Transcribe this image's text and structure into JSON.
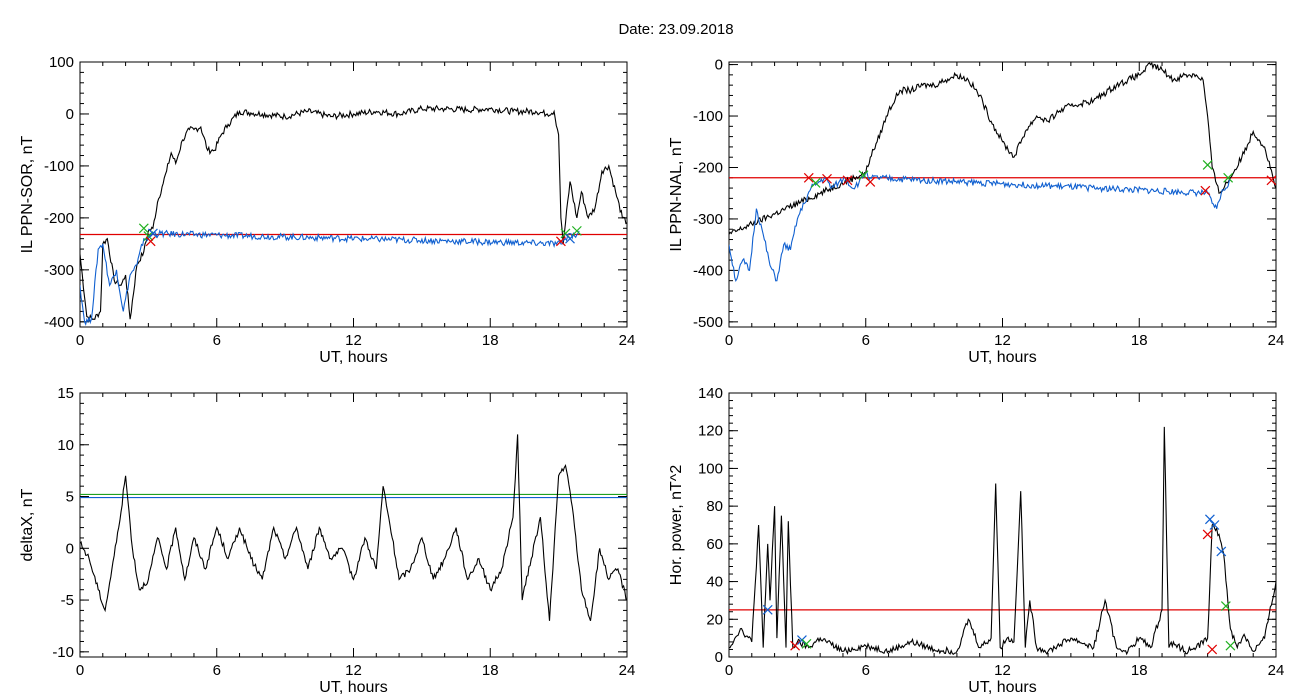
{
  "title": "Date:  23.09.2018",
  "chart_data": [
    {
      "type": "line",
      "xlabel": "UT, hours",
      "ylabel": "IL PPN-SOR, nT",
      "xlim": [
        0,
        24
      ],
      "ylim": [
        -410,
        100
      ],
      "xticks": [
        0,
        6,
        12,
        18,
        24
      ],
      "yticks": [
        100,
        0,
        -100,
        -200,
        -300,
        -400
      ],
      "threshold": {
        "value": -232,
        "color": "#e00000"
      },
      "series": [
        {
          "color": "#000000",
          "x": [
            0,
            0.3,
            0.6,
            0.9,
            1.0,
            1.2,
            1.5,
            1.8,
            2.0,
            2.2,
            2.5,
            2.8,
            3.0,
            3.2,
            3.4,
            3.6,
            3.8,
            4.0,
            4.2,
            4.5,
            4.8,
            5.0,
            5.3,
            5.6,
            5.9,
            6.2,
            6.5,
            7.0,
            7.5,
            8,
            9,
            10,
            11,
            12,
            13,
            14,
            15,
            16,
            17,
            18,
            19,
            20,
            20.5,
            20.8,
            21.0,
            21.1,
            21.2,
            21.5,
            21.8,
            22.0,
            22.3,
            22.6,
            22.9,
            23.2,
            23.5,
            23.8,
            24
          ],
          "y": [
            -270,
            -390,
            -395,
            -380,
            -250,
            -240,
            -320,
            -330,
            -310,
            -395,
            -290,
            -265,
            -225,
            -220,
            -170,
            -140,
            -110,
            -75,
            -95,
            -50,
            -30,
            -30,
            -25,
            -70,
            -70,
            -40,
            -20,
            5,
            2,
            0,
            -5,
            5,
            -5,
            0,
            5,
            0,
            10,
            10,
            8,
            10,
            5,
            5,
            0,
            5,
            -40,
            -200,
            -250,
            -130,
            -200,
            -150,
            -200,
            -180,
            -110,
            -100,
            -150,
            -200,
            -210
          ]
        },
        {
          "color": "#1060d0",
          "x": [
            0,
            0.2,
            0.5,
            0.8,
            1.0,
            1.3,
            1.6,
            1.9,
            2.2,
            2.5,
            2.8,
            3.0,
            3.2,
            21.1,
            21.3,
            21.5,
            21.7,
            21.9
          ],
          "y": [
            -330,
            -400,
            -395,
            -260,
            -250,
            -330,
            -300,
            -380,
            -310,
            -290,
            -240,
            -240,
            -230,
            -250,
            -240,
            -230,
            -235,
            -225
          ]
        }
      ],
      "markers": [
        {
          "x": 2.8,
          "y": -220,
          "color": "#20b020"
        },
        {
          "x": 3.0,
          "y": -235,
          "color": "#20b020"
        },
        {
          "x": 3.1,
          "y": -245,
          "color": "#e00000"
        },
        {
          "x": 3.2,
          "y": -230,
          "color": "#1060d0"
        },
        {
          "x": 21.1,
          "y": -245,
          "color": "#e00000"
        },
        {
          "x": 21.3,
          "y": -230,
          "color": "#20b020"
        },
        {
          "x": 21.5,
          "y": -240,
          "color": "#1060d0"
        },
        {
          "x": 21.8,
          "y": -225,
          "color": "#20b020"
        }
      ]
    },
    {
      "type": "line",
      "xlabel": "UT, hours",
      "ylabel": "IL PPN-NAL, nT",
      "xlim": [
        0,
        24
      ],
      "ylim": [
        -510,
        5
      ],
      "xticks": [
        0,
        6,
        12,
        18,
        24
      ],
      "yticks": [
        0,
        -100,
        -200,
        -300,
        -400,
        -500
      ],
      "threshold": {
        "value": -220,
        "color": "#e00000"
      },
      "series": [
        {
          "color": "#000000",
          "x": [
            0,
            6.0,
            6.2,
            6.5,
            7.0,
            7.5,
            8.0,
            8.5,
            9.0,
            9.5,
            10.0,
            10.5,
            11.0,
            11.5,
            12.0,
            12.5,
            13.0,
            13.5,
            14.0,
            14.5,
            15,
            16,
            17,
            18,
            18.5,
            19.0,
            19.5,
            20.0,
            20.5,
            20.8,
            21.0,
            21.2,
            21.5,
            22.0,
            22.5,
            23.0,
            23.5,
            24
          ],
          "y": [
            -330,
            -210,
            -180,
            -150,
            -90,
            -50,
            -50,
            -40,
            -40,
            -30,
            -20,
            -30,
            -60,
            -110,
            -150,
            -180,
            -130,
            -100,
            -110,
            -90,
            -80,
            -70,
            -40,
            -20,
            0,
            -10,
            -30,
            -20,
            -20,
            -30,
            -100,
            -200,
            -250,
            -220,
            -180,
            -130,
            -160,
            -240
          ]
        },
        {
          "color": "#1060d0",
          "x": [
            0,
            0.3,
            0.6,
            0.9,
            1.2,
            1.5,
            1.8,
            2.1,
            2.4,
            2.7,
            3.0,
            3.3,
            3.6,
            3.9,
            4.2,
            4.5,
            4.8,
            5.1,
            5.4,
            5.7,
            6.0,
            6.2,
            21.0,
            21.2,
            21.4,
            21.6,
            21.8,
            22.0
          ],
          "y": [
            -350,
            -420,
            -380,
            -400,
            -280,
            -330,
            -390,
            -420,
            -350,
            -360,
            -300,
            -270,
            -240,
            -230,
            -220,
            -240,
            -230,
            -220,
            -240,
            -230,
            -210,
            -220,
            -250,
            -270,
            -280,
            -250,
            -240,
            -225
          ]
        }
      ],
      "markers": [
        {
          "x": 3.5,
          "y": -220,
          "color": "#e00000"
        },
        {
          "x": 3.8,
          "y": -230,
          "color": "#20b020"
        },
        {
          "x": 4.3,
          "y": -222,
          "color": "#e00000"
        },
        {
          "x": 5.2,
          "y": -225,
          "color": "#e00000"
        },
        {
          "x": 5.9,
          "y": -215,
          "color": "#20b020"
        },
        {
          "x": 6.2,
          "y": -228,
          "color": "#e00000"
        },
        {
          "x": 20.9,
          "y": -245,
          "color": "#e00000"
        },
        {
          "x": 21.0,
          "y": -195,
          "color": "#20b020"
        },
        {
          "x": 21.9,
          "y": -220,
          "color": "#20b020"
        },
        {
          "x": 23.8,
          "y": -225,
          "color": "#e00000"
        }
      ]
    },
    {
      "type": "line",
      "xlabel": "UT, hours",
      "ylabel": "deltaX, nT",
      "xlim": [
        0,
        24
      ],
      "ylim": [
        -10.5,
        15
      ],
      "xticks": [
        0,
        6,
        12,
        18,
        24
      ],
      "yticks": [
        15,
        10,
        5,
        0,
        -5,
        -10
      ],
      "thresholds": [
        {
          "value": 5.2,
          "color": "#20a020"
        },
        {
          "value": 4.9,
          "color": "#1060d0"
        }
      ],
      "series": [
        {
          "color": "#000000",
          "x": [
            0,
            0.4,
            0.8,
            1.1,
            1.4,
            1.7,
            2.0,
            2.3,
            2.6,
            3.0,
            3.4,
            3.8,
            4.2,
            4.6,
            5.0,
            5.5,
            6.0,
            6.5,
            7.0,
            7.5,
            8.0,
            8.5,
            9.0,
            9.5,
            10.0,
            10.5,
            11.0,
            11.5,
            12.0,
            12.5,
            13.0,
            13.3,
            13.7,
            14.0,
            14.5,
            15.0,
            15.5,
            16.0,
            16.5,
            17.0,
            17.5,
            18.0,
            18.5,
            19.0,
            19.2,
            19.4,
            19.8,
            20.2,
            20.6,
            21.0,
            21.3,
            21.6,
            22.0,
            22.4,
            22.8,
            23.2,
            23.6,
            24
          ],
          "y": [
            0.5,
            -1,
            -4,
            -6,
            -2,
            2,
            7,
            0,
            -4,
            -3,
            1,
            -2,
            2,
            -3,
            1,
            -2,
            2,
            -1,
            2,
            -1,
            -3,
            2,
            -1,
            2,
            -2,
            2,
            -1,
            0,
            -3,
            1,
            -2,
            6,
            1,
            -3,
            -2,
            1,
            -3,
            -1,
            2,
            -3,
            -1,
            -4,
            -2,
            3,
            11,
            -5,
            -1,
            3,
            -7,
            7,
            8,
            4,
            -4,
            -7,
            0,
            -3,
            -2,
            -5
          ]
        }
      ]
    },
    {
      "type": "line",
      "xlabel": "UT, hours",
      "ylabel": "Hor. power, nT^2",
      "xlim": [
        0,
        24
      ],
      "ylim": [
        0,
        140
      ],
      "xticks": [
        0,
        6,
        12,
        18,
        24
      ],
      "yticks": [
        140,
        120,
        100,
        80,
        60,
        40,
        20,
        0
      ],
      "threshold": {
        "value": 25,
        "color": "#e00000"
      },
      "series": [
        {
          "color": "#000000",
          "x": [
            0,
            0.5,
            1.0,
            1.3,
            1.5,
            1.7,
            1.8,
            2.0,
            2.1,
            2.3,
            2.5,
            2.6,
            2.8,
            3.0,
            3.5,
            4,
            5,
            6,
            7,
            8,
            9,
            10,
            10.5,
            11,
            11.5,
            11.7,
            11.9,
            12.2,
            12.5,
            12.8,
            13.0,
            13.2,
            13.5,
            14,
            15,
            16,
            16.5,
            17,
            17.5,
            18,
            18.5,
            19.0,
            19.1,
            19.3,
            19.5,
            20,
            20.5,
            21.0,
            21.2,
            21.5,
            21.7,
            22.0,
            22.3,
            22.6,
            23,
            23.5,
            24
          ],
          "y": [
            5,
            15,
            8,
            70,
            5,
            60,
            30,
            80,
            10,
            75,
            5,
            72,
            5,
            8,
            5,
            10,
            3,
            6,
            3,
            8,
            4,
            3,
            20,
            5,
            10,
            92,
            5,
            10,
            8,
            88,
            5,
            30,
            5,
            3,
            10,
            5,
            30,
            5,
            3,
            10,
            5,
            25,
            122,
            5,
            8,
            3,
            5,
            10,
            70,
            65,
            55,
            15,
            5,
            12,
            3,
            10,
            40
          ]
        }
      ],
      "markers": [
        {
          "x": 1.7,
          "y": 25,
          "color": "#1060d0"
        },
        {
          "x": 2.9,
          "y": 6,
          "color": "#e00000"
        },
        {
          "x": 3.2,
          "y": 9,
          "color": "#1060d0"
        },
        {
          "x": 3.4,
          "y": 7,
          "color": "#20b020"
        },
        {
          "x": 21.0,
          "y": 65,
          "color": "#e00000"
        },
        {
          "x": 21.1,
          "y": 73,
          "color": "#1060d0"
        },
        {
          "x": 21.3,
          "y": 70,
          "color": "#1060d0"
        },
        {
          "x": 21.6,
          "y": 56,
          "color": "#1060d0"
        },
        {
          "x": 21.8,
          "y": 27,
          "color": "#20b020"
        },
        {
          "x": 21.2,
          "y": 4,
          "color": "#e00000"
        },
        {
          "x": 22.0,
          "y": 6,
          "color": "#20b020"
        }
      ]
    }
  ]
}
